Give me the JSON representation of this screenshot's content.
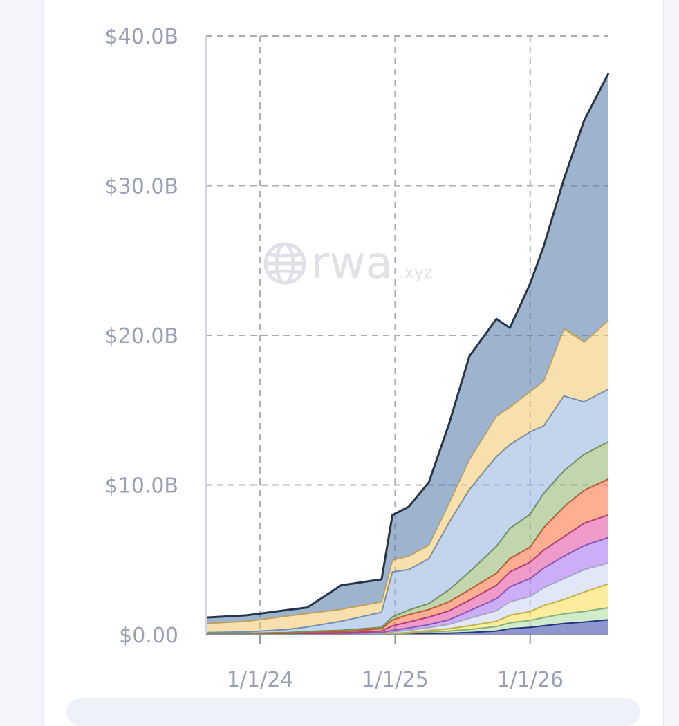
{
  "watermark": {
    "brand": "rwa",
    "suffix": ".xyz",
    "icon": "globe-icon"
  },
  "chart_data": {
    "type": "area",
    "stacked": true,
    "title": "",
    "xlabel": "",
    "ylabel": "",
    "y_tick_labels": [
      "$0.00",
      "$10.0B",
      "$20.0B",
      "$30.0B",
      "$40.0B"
    ],
    "y_ticks": [
      0,
      10,
      20,
      30,
      40
    ],
    "ylim": [
      0,
      40
    ],
    "x_tick_labels": [
      "1/1/24",
      "1/1/25",
      "1/1/26"
    ],
    "x_ticks": [
      2024.0,
      2025.0,
      2026.0
    ],
    "xlim": [
      2023.6,
      2026.58
    ],
    "grid": true,
    "x": [
      2023.6,
      2023.9,
      2024.2,
      2024.35,
      2024.6,
      2024.9,
      2024.98,
      2025.1,
      2025.25,
      2025.4,
      2025.55,
      2025.75,
      2025.85,
      2026.0,
      2026.1,
      2026.25,
      2026.4,
      2026.58
    ],
    "series": [
      {
        "color": "#2f3fa6",
        "values": [
          0.05,
          0.05,
          0.05,
          0.05,
          0.05,
          0.05,
          0.05,
          0.05,
          0.08,
          0.1,
          0.15,
          0.25,
          0.4,
          0.5,
          0.6,
          0.75,
          0.85,
          1.0
        ]
      },
      {
        "color": "#a9dca0",
        "values": [
          0.0,
          0.0,
          0.0,
          0.0,
          0.0,
          0.0,
          0.02,
          0.05,
          0.1,
          0.15,
          0.2,
          0.3,
          0.4,
          0.45,
          0.55,
          0.65,
          0.7,
          0.8
        ]
      },
      {
        "color": "#f7df4c",
        "values": [
          0.0,
          0.0,
          0.0,
          0.0,
          0.0,
          0.0,
          0.02,
          0.05,
          0.1,
          0.15,
          0.25,
          0.35,
          0.5,
          0.6,
          0.8,
          0.95,
          1.3,
          1.6
        ]
      },
      {
        "color": "#c9d4ee",
        "values": [
          0.0,
          0.0,
          0.0,
          0.02,
          0.02,
          0.05,
          0.1,
          0.15,
          0.2,
          0.3,
          0.5,
          0.7,
          0.9,
          1.0,
          1.2,
          1.4,
          1.5,
          1.4
        ]
      },
      {
        "color": "#a06bf1",
        "values": [
          0.0,
          0.0,
          0.0,
          0.02,
          0.02,
          0.05,
          0.1,
          0.15,
          0.2,
          0.3,
          0.5,
          0.8,
          1.0,
          1.2,
          1.3,
          1.5,
          1.6,
          1.7
        ]
      },
      {
        "color": "#e0489c",
        "values": [
          0.0,
          0.0,
          0.0,
          0.02,
          0.03,
          0.1,
          0.3,
          0.4,
          0.5,
          0.6,
          0.7,
          0.9,
          1.0,
          1.1,
          1.2,
          1.3,
          1.5,
          1.5
        ]
      },
      {
        "color": "#fb6b3a",
        "values": [
          0.02,
          0.02,
          0.05,
          0.05,
          0.08,
          0.15,
          0.4,
          0.5,
          0.5,
          0.6,
          0.7,
          0.8,
          0.9,
          1.0,
          1.5,
          2.0,
          2.2,
          2.4
        ]
      },
      {
        "color": "#8fb46a",
        "values": [
          0.03,
          0.03,
          0.05,
          0.06,
          0.1,
          0.1,
          0.2,
          0.3,
          0.4,
          0.8,
          1.2,
          1.8,
          2.0,
          2.2,
          2.3,
          2.4,
          2.4,
          2.5
        ]
      },
      {
        "color": "#8fb3de",
        "values": [
          0.05,
          0.1,
          0.2,
          0.3,
          0.6,
          1.0,
          3.0,
          2.7,
          3.0,
          4.5,
          5.5,
          6.0,
          5.6,
          5.5,
          4.5,
          5.0,
          3.5,
          3.5
        ]
      },
      {
        "color": "#f0c76b",
        "values": [
          0.6,
          0.7,
          0.9,
          0.9,
          0.8,
          0.7,
          0.8,
          0.9,
          0.9,
          1.3,
          2.0,
          2.7,
          2.5,
          2.7,
          3.0,
          4.5,
          4.0,
          4.6
        ]
      },
      {
        "color": "#4f77a6",
        "values": [
          0.4,
          0.4,
          0.4,
          0.4,
          1.6,
          1.5,
          3.0,
          3.3,
          4.2,
          5.3,
          6.9,
          6.5,
          5.3,
          7.2,
          9.0,
          10.0,
          14.8,
          16.5
        ]
      }
    ]
  }
}
